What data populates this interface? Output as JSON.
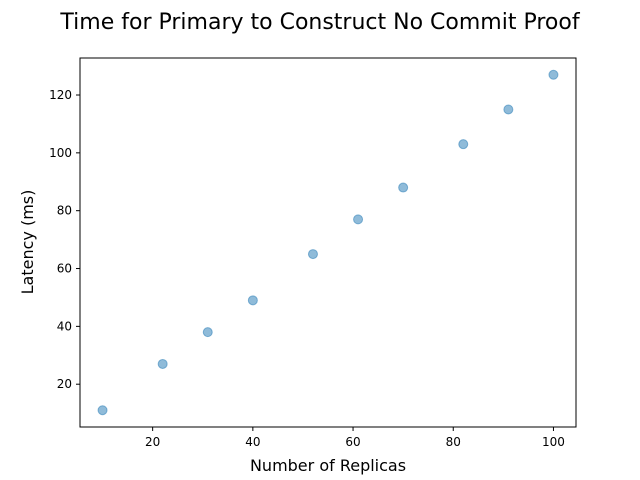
{
  "chart_data": {
    "type": "scatter",
    "title": "Time for Primary to Construct No Commit Proof",
    "xlabel": "Number of Replicas",
    "ylabel": "Latency (ms)",
    "xlim": [
      5.5,
      104.5
    ],
    "ylim": [
      5.2,
      132.8
    ],
    "xticks": [
      20,
      40,
      60,
      80,
      100
    ],
    "yticks": [
      20,
      40,
      60,
      80,
      100,
      120
    ],
    "grid": false,
    "series": [
      {
        "x": [
          10,
          22,
          31,
          40,
          52,
          61,
          70,
          82,
          91,
          100
        ],
        "y": [
          11,
          27,
          38,
          49,
          65,
          77,
          88,
          103,
          115,
          127
        ],
        "color": "#1f77b4",
        "alpha": 0.5
      }
    ]
  }
}
